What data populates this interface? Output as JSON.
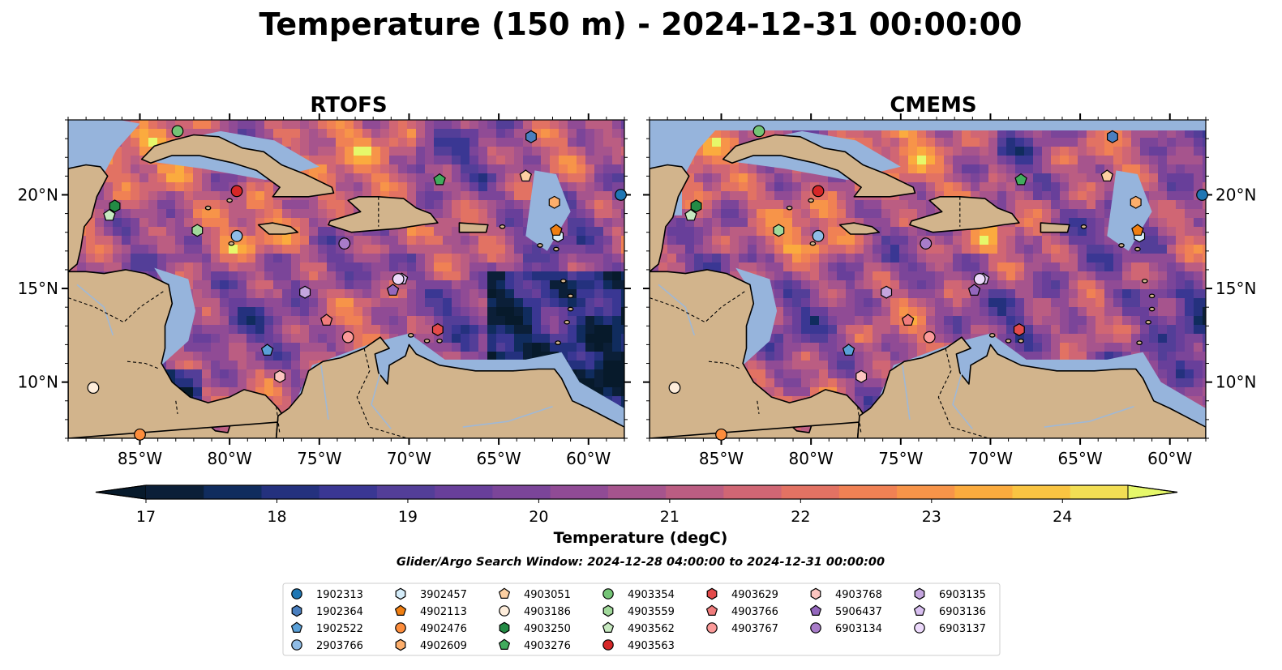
{
  "figure": {
    "title": "Temperature (150 m) - 2024-12-31 00:00:00",
    "search_window": "Glider/Argo Search Window: 2024-12-28 04:00:00 to 2024-12-31 00:00:00"
  },
  "panels": [
    {
      "title": "RTOFS"
    },
    {
      "title": "CMEMS"
    }
  ],
  "axes": {
    "lon_ticks": [
      "85°W",
      "80°W",
      "75°W",
      "70°W",
      "65°W",
      "60°W"
    ],
    "lat_ticks": [
      "20°N",
      "15°N",
      "10°N"
    ],
    "lon_range": [
      -89,
      -58
    ],
    "lat_range": [
      7,
      24
    ]
  },
  "colorbar": {
    "label": "Temperature (degC)",
    "ticks": [
      "17",
      "18",
      "19",
      "20",
      "21",
      "22",
      "23",
      "24"
    ],
    "range": [
      17,
      24.5
    ],
    "step": 0.5,
    "extend": "both",
    "colormap": "thermal",
    "colors": [
      "#0b1f38",
      "#102c5e",
      "#24317e",
      "#3a3793",
      "#533e98",
      "#683f9a",
      "#7b4599",
      "#904b95",
      "#a6548d",
      "#bb5d82",
      "#d06674",
      "#e27263",
      "#f08154",
      "#f79449",
      "#fbab3e",
      "#f9c442",
      "#f2de54"
    ],
    "over_color": "#e6f86a",
    "under_color": "#071a2b"
  },
  "map_colors": {
    "land": "#d2b48c",
    "shelf": "#96b4dc",
    "deep": "#0b1f38"
  },
  "floats": [
    {
      "id": "1902313",
      "marker": "circle",
      "color": "#1f77b4",
      "lon": -58.2,
      "lat": 20.0
    },
    {
      "id": "1902364",
      "marker": "hexagon",
      "color": "#4a7fbf",
      "lon": -63.2,
      "lat": 23.1
    },
    {
      "id": "1902522",
      "marker": "pentagon",
      "color": "#5aa0d8",
      "lon": -77.9,
      "lat": 11.7
    },
    {
      "id": "2903766",
      "marker": "circle",
      "color": "#8fbce6",
      "lon": -79.6,
      "lat": 17.8
    },
    {
      "id": "3902457",
      "marker": "hexagon",
      "color": "#d4ecf9",
      "lon": -61.7,
      "lat": 17.8
    },
    {
      "id": "4902113",
      "marker": "pentagon",
      "color": "#f07f12",
      "lon": -61.8,
      "lat": 18.1
    },
    {
      "id": "4902476",
      "marker": "circle",
      "color": "#fd8d3c",
      "lon": -85.0,
      "lat": 7.2
    },
    {
      "id": "4902609",
      "marker": "hexagon",
      "color": "#fdae6b",
      "lon": -61.9,
      "lat": 19.6
    },
    {
      "id": "4903051",
      "marker": "pentagon",
      "color": "#fdd0a2",
      "lon": -63.5,
      "lat": 21.0
    },
    {
      "id": "4903186",
      "marker": "circle",
      "color": "#feeddb",
      "lon": -87.6,
      "lat": 9.7
    },
    {
      "id": "4903250",
      "marker": "hexagon",
      "color": "#238b45",
      "lon": -86.4,
      "lat": 19.4
    },
    {
      "id": "4903276",
      "marker": "pentagon",
      "color": "#41ab5d",
      "lon": -68.3,
      "lat": 20.8
    },
    {
      "id": "4903354",
      "marker": "circle",
      "color": "#74c476",
      "lon": -82.9,
      "lat": 23.4
    },
    {
      "id": "4903559",
      "marker": "hexagon",
      "color": "#a1d99b",
      "lon": -81.8,
      "lat": 18.1
    },
    {
      "id": "4903562",
      "marker": "pentagon",
      "color": "#c7e9c0",
      "lon": -86.7,
      "lat": 18.9
    },
    {
      "id": "4903563",
      "marker": "circle",
      "color": "#d62728",
      "lon": -79.6,
      "lat": 20.2
    },
    {
      "id": "4903629",
      "marker": "hexagon",
      "color": "#e34a4a",
      "lon": -68.4,
      "lat": 12.8
    },
    {
      "id": "4903766",
      "marker": "pentagon",
      "color": "#f07c7c",
      "lon": -74.6,
      "lat": 13.3
    },
    {
      "id": "4903767",
      "marker": "circle",
      "color": "#fb9a99",
      "lon": -73.4,
      "lat": 12.4
    },
    {
      "id": "4903768",
      "marker": "hexagon",
      "color": "#fcc5c0",
      "lon": -77.2,
      "lat": 10.3
    },
    {
      "id": "5906437",
      "marker": "pentagon",
      "color": "#9467bd",
      "lon": -70.9,
      "lat": 14.9
    },
    {
      "id": "6903134",
      "marker": "circle",
      "color": "#a87cc9",
      "lon": -73.6,
      "lat": 17.4
    },
    {
      "id": "6903135",
      "marker": "hexagon",
      "color": "#c4a5de",
      "lon": -75.8,
      "lat": 14.8
    },
    {
      "id": "6903136",
      "marker": "pentagon",
      "color": "#d8bff0",
      "lon": -70.4,
      "lat": 15.5
    },
    {
      "id": "6903137",
      "marker": "circle",
      "color": "#ecd9fb",
      "lon": -70.6,
      "lat": 15.5
    }
  ]
}
